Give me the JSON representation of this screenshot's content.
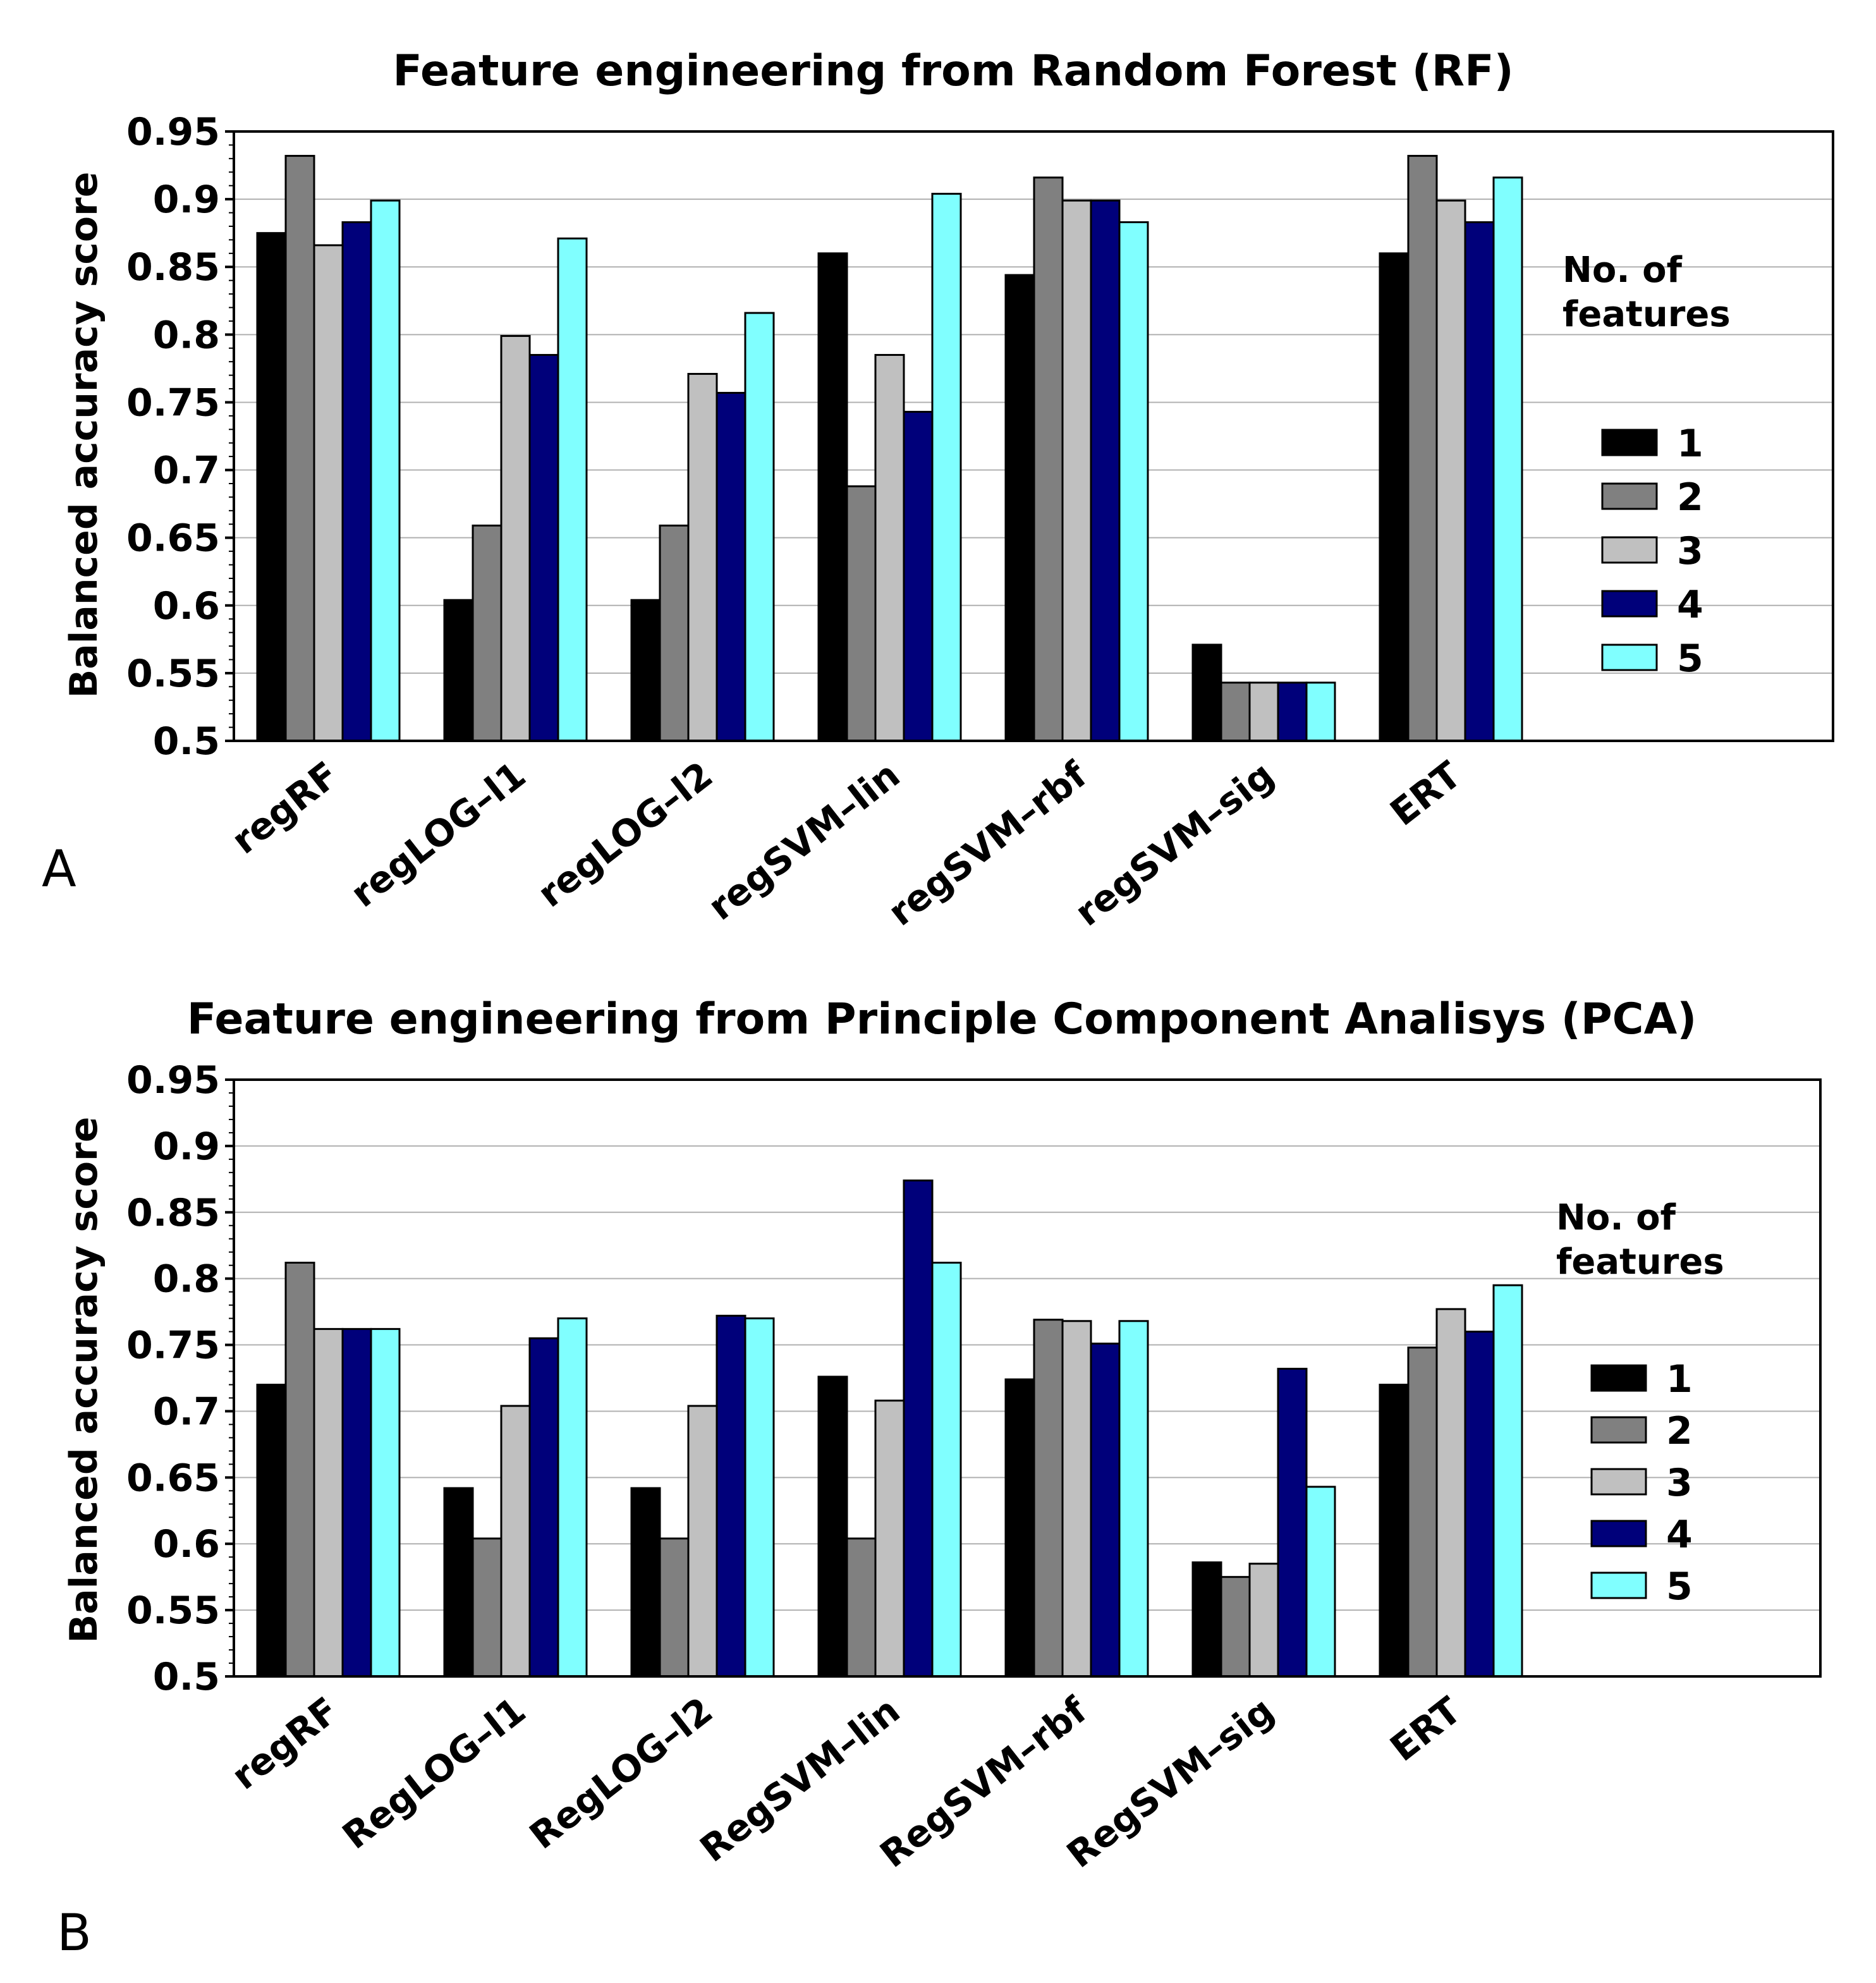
{
  "chart_data": [
    {
      "type": "bar",
      "panel_label": "A",
      "title": "Feature engineering from Random Forest (RF)",
      "ylabel": "Balanced accuracy score",
      "xlabel": "",
      "ylim": [
        0.5,
        0.95
      ],
      "yticks": [
        "0.5",
        "0.55",
        "0.6",
        "0.65",
        "0.7",
        "0.75",
        "0.8",
        "0.85",
        "0.9",
        "0.95"
      ],
      "categories": [
        "regRF",
        "regLOG–l1",
        "regLOG–l2",
        "regSVM–lin",
        "regSVM–rbf",
        "regSVM–sig",
        "ERT"
      ],
      "legend_title": [
        "No. of",
        "features"
      ],
      "legend_position": "right",
      "series": [
        {
          "name": "1",
          "color": "#000000",
          "values": [
            0.875,
            0.604,
            0.604,
            0.86,
            0.844,
            0.571,
            0.86
          ]
        },
        {
          "name": "2",
          "color": "#808080",
          "values": [
            0.932,
            0.659,
            0.659,
            0.688,
            0.916,
            0.543,
            0.932
          ]
        },
        {
          "name": "3",
          "color": "#c0c0c0",
          "values": [
            0.866,
            0.799,
            0.771,
            0.785,
            0.899,
            0.543,
            0.899
          ]
        },
        {
          "name": "4",
          "color": "#00007a",
          "values": [
            0.883,
            0.785,
            0.757,
            0.743,
            0.899,
            0.543,
            0.883
          ]
        },
        {
          "name": "5",
          "color": "#80ffff",
          "values": [
            0.899,
            0.871,
            0.816,
            0.904,
            0.883,
            0.543,
            0.916
          ]
        }
      ]
    },
    {
      "type": "bar",
      "panel_label": "B",
      "title": "Feature engineering from Principle Component Analisys (PCA)",
      "ylabel": "Balanced accuracy score",
      "xlabel": "",
      "ylim": [
        0.5,
        0.95
      ],
      "yticks": [
        "0.5",
        "0.55",
        "0.6",
        "0.65",
        "0.7",
        "0.75",
        "0.8",
        "0.85",
        "0.9",
        "0.95"
      ],
      "categories": [
        "regRF",
        "RegLOG–l1",
        "RegLOG–l2",
        "RegSVM–lin",
        "RegSVM–rbf",
        "RegSVM–sig",
        "ERT"
      ],
      "legend_title": [
        "No. of",
        "features"
      ],
      "legend_position": "right",
      "series": [
        {
          "name": "1",
          "color": "#000000",
          "values": [
            0.72,
            0.642,
            0.642,
            0.726,
            0.724,
            0.586,
            0.72
          ]
        },
        {
          "name": "2",
          "color": "#808080",
          "values": [
            0.812,
            0.604,
            0.604,
            0.604,
            0.769,
            0.575,
            0.748
          ]
        },
        {
          "name": "3",
          "color": "#c0c0c0",
          "values": [
            0.762,
            0.704,
            0.704,
            0.708,
            0.768,
            0.585,
            0.777
          ]
        },
        {
          "name": "4",
          "color": "#00007a",
          "values": [
            0.762,
            0.755,
            0.772,
            0.874,
            0.751,
            0.732,
            0.76
          ]
        },
        {
          "name": "5",
          "color": "#80ffff",
          "values": [
            0.762,
            0.77,
            0.77,
            0.812,
            0.768,
            0.643,
            0.795
          ]
        }
      ]
    }
  ]
}
